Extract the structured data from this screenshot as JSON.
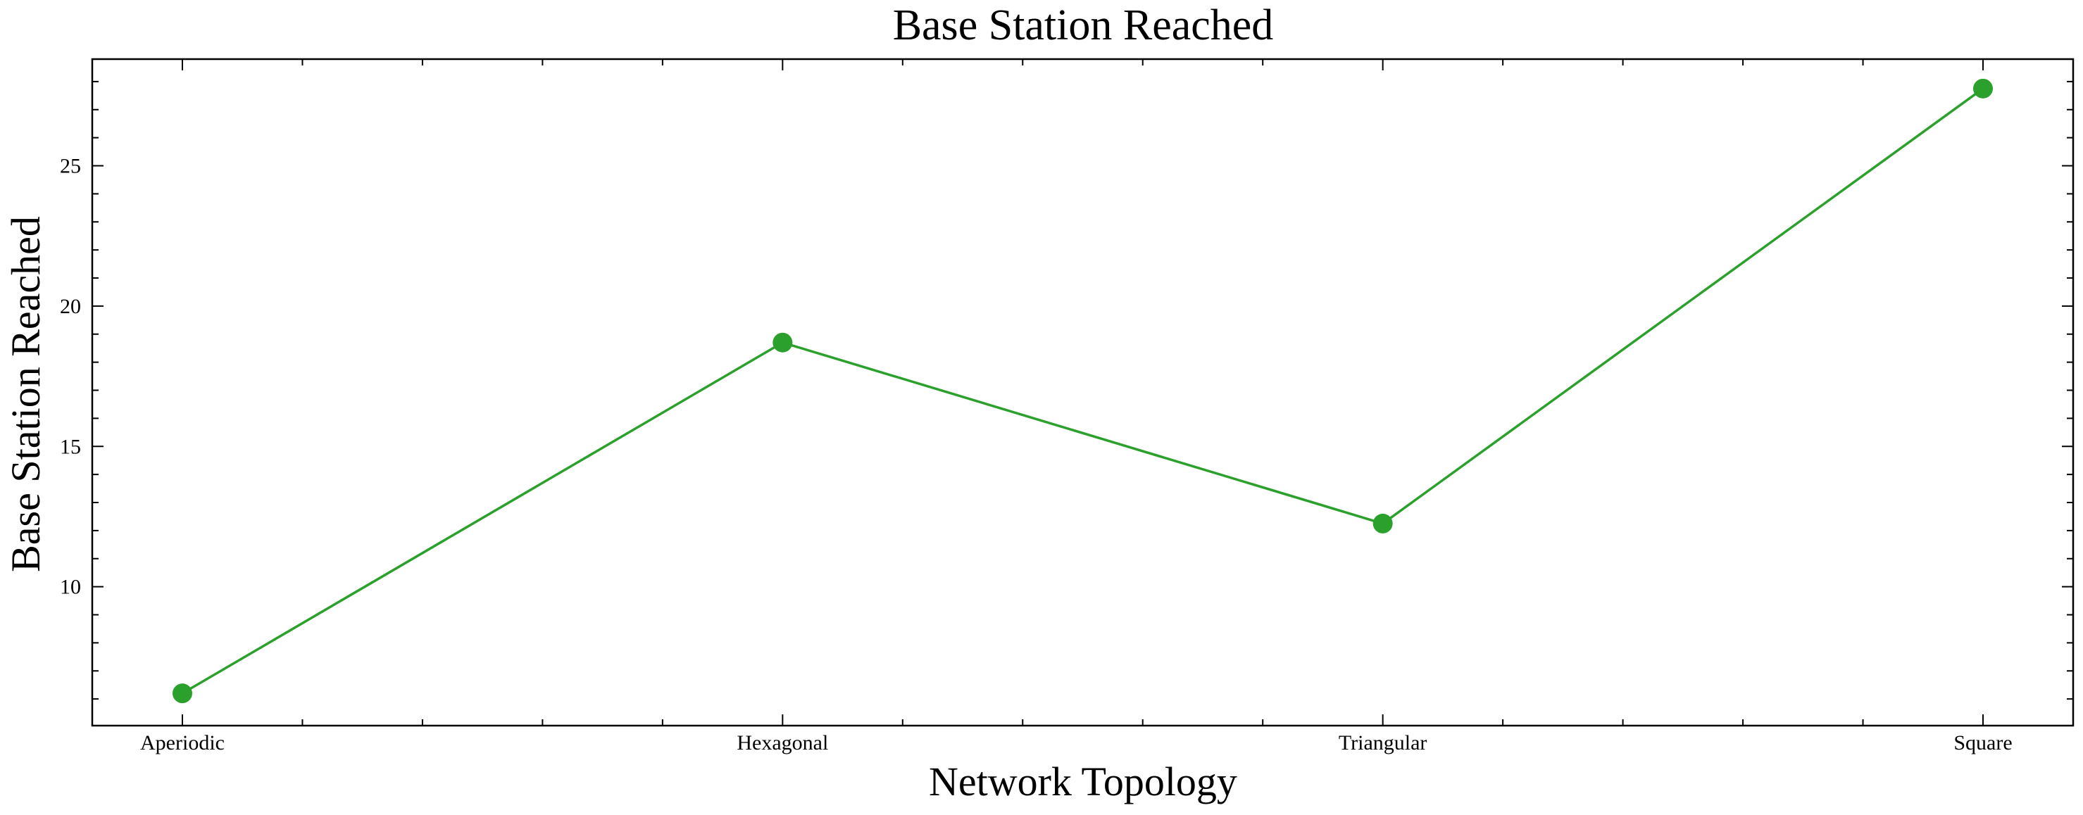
{
  "chart_data": {
    "type": "line",
    "title": "Base Station Reached",
    "xlabel": "Network Topology",
    "ylabel": "Base Station Reached",
    "categories": [
      "Aperiodic",
      "Hexagonal",
      "Triangular",
      "Square"
    ],
    "series": [
      {
        "values": [
          6.2,
          18.7,
          12.25,
          27.75
        ],
        "color": "#2ca02c",
        "marker": "circle"
      }
    ],
    "ylim": [
      5.05,
      28.8
    ],
    "yticks": [
      10,
      15,
      20,
      25
    ],
    "y_minor_step": 1,
    "x_minor_per_interval": 4,
    "grid": false,
    "tick_direction": "in",
    "ticks_on_all_sides": true
  }
}
